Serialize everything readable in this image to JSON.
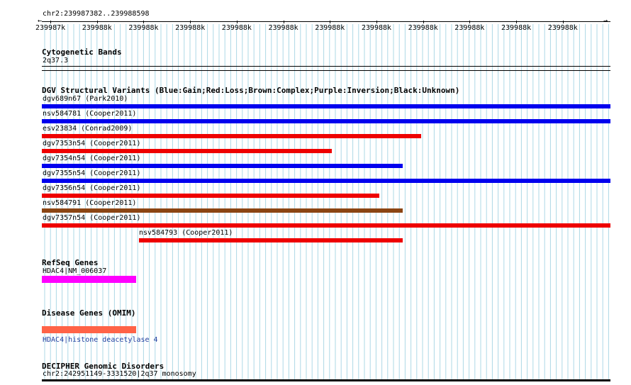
{
  "ruler": {
    "region": "chr2:239987382..239988598",
    "ticks": [
      "239987k",
      "239988k",
      "239988k",
      "239988k",
      "239988k",
      "239988k",
      "239988k",
      "239988k",
      "239988k",
      "239988k",
      "239988k",
      "239988k"
    ]
  },
  "cytoband": {
    "title": "Cytogenetic Bands",
    "band": "2q37.3"
  },
  "dgv": {
    "title": "DGV Structural Variants (Blue:Gain;Red:Loss;Brown:Complex;Purple:Inversion;Black:Unknown)",
    "variants": [
      {
        "label": "dgv689n67 (Park2010)",
        "color": "#0000ee"
      },
      {
        "label": "nsv584781 (Cooper2011)",
        "color": "#0000ee"
      },
      {
        "label": "esv23834 (Conrad2009)",
        "color": "#ee0000"
      },
      {
        "label": "dgv7353n54 (Cooper2011)",
        "color": "#ee0000"
      },
      {
        "label": "dgv7354n54 (Cooper2011)",
        "color": "#0000ee"
      },
      {
        "label": "dgv7355n54 (Cooper2011)",
        "color": "#0000ee"
      },
      {
        "label": "dgv7356n54 (Cooper2011)",
        "color": "#ee0000"
      },
      {
        "label": "nsv584791 (Cooper2011)",
        "color": "#8b4513"
      },
      {
        "label": "dgv7357n54 (Cooper2011)",
        "color": "#ee0000"
      },
      {
        "label": "nsv584793 (Cooper2011)",
        "color": "#ee0000"
      }
    ]
  },
  "refseq": {
    "title": "RefSeq Genes",
    "gene": "HDAC4|NM_006037",
    "color": "#ff00ff"
  },
  "disease": {
    "title": "Disease Genes (OMIM)",
    "gene": "HDAC4|histone deacetylase 4",
    "color": "#ff6347"
  },
  "decipher": {
    "title": "DECIPHER Genomic Disorders",
    "entry": "chr2:242951149-3331520|2q37 monosomy"
  }
}
